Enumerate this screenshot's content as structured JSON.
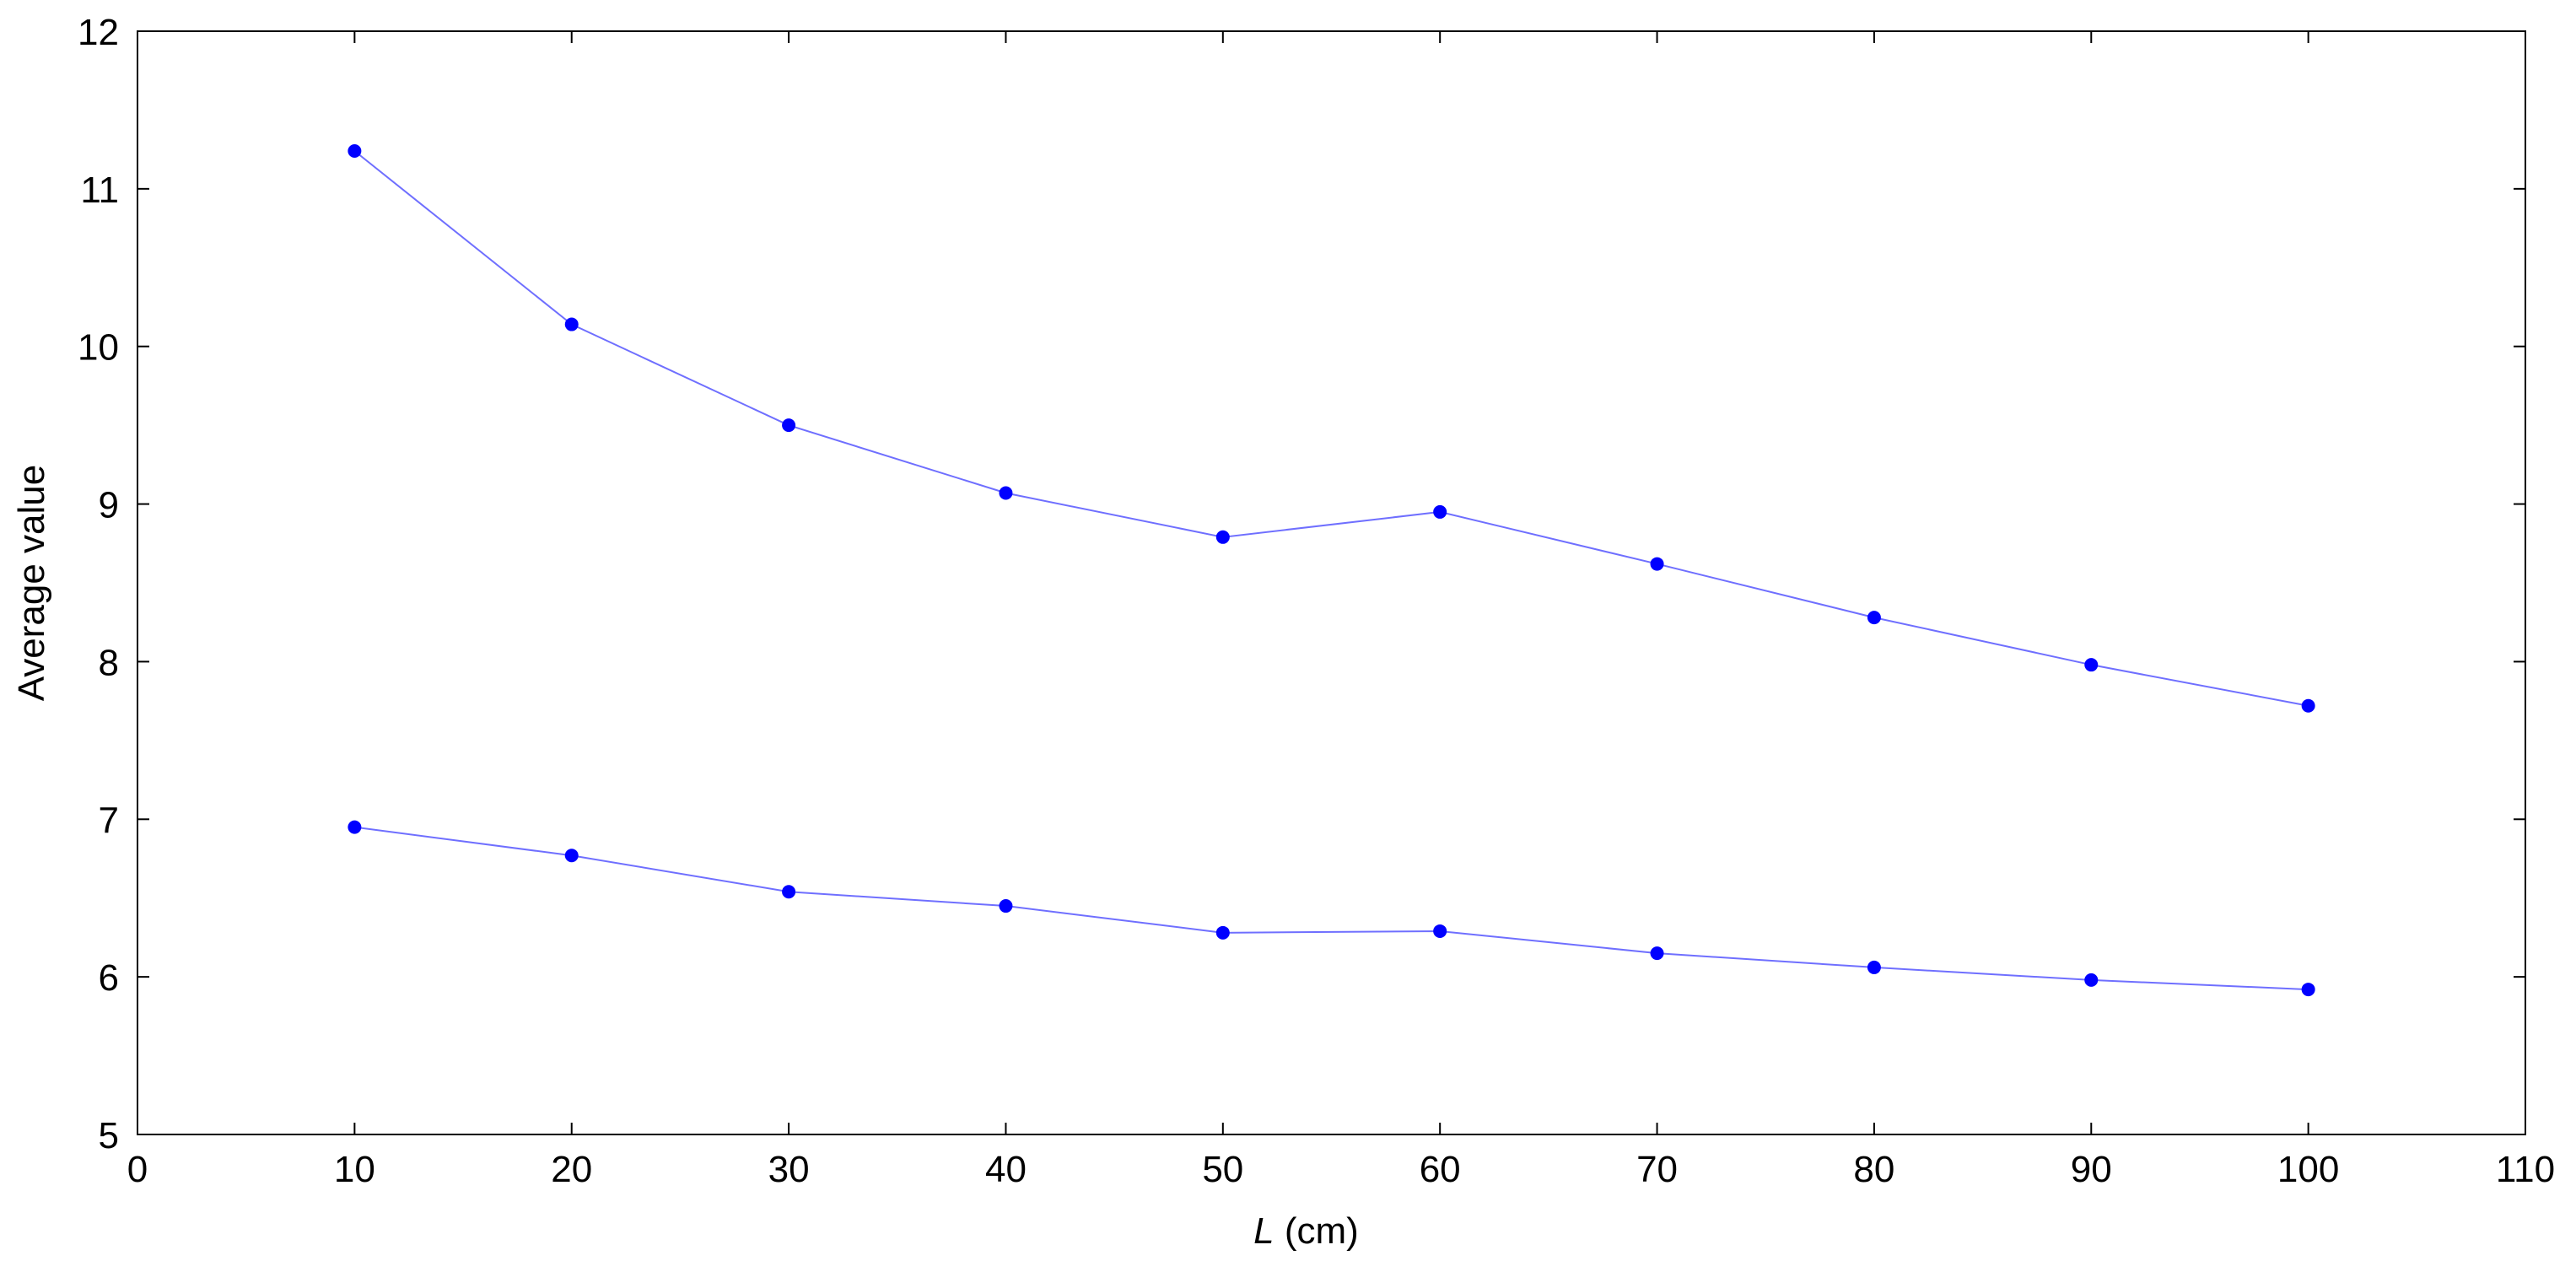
{
  "chart_data": {
    "type": "line",
    "title": "",
    "xlabel": {
      "variable": "L",
      "unit": " (cm)"
    },
    "ylabel": "Average value",
    "xlim": [
      0,
      110
    ],
    "ylim": [
      5,
      12
    ],
    "xticks": [
      0,
      10,
      20,
      30,
      40,
      50,
      60,
      70,
      80,
      90,
      100,
      110
    ],
    "yticks": [
      5,
      6,
      7,
      8,
      9,
      10,
      11,
      12
    ],
    "grid": false,
    "legend": "none",
    "x": [
      10,
      20,
      30,
      40,
      50,
      60,
      70,
      80,
      90,
      100
    ],
    "series": [
      {
        "values": [
          11.24,
          10.14,
          9.5,
          9.07,
          8.79,
          8.95,
          8.62,
          8.28,
          7.98,
          7.72
        ],
        "color": "#0000ff",
        "line_color": "#6f6fff",
        "marker": "dot"
      },
      {
        "values": [
          6.95,
          6.77,
          6.54,
          6.45,
          6.28,
          6.29,
          6.15,
          6.06,
          5.98,
          5.92
        ],
        "color": "#0000ff",
        "line_color": "#6f6fff",
        "marker": "dot"
      }
    ]
  }
}
